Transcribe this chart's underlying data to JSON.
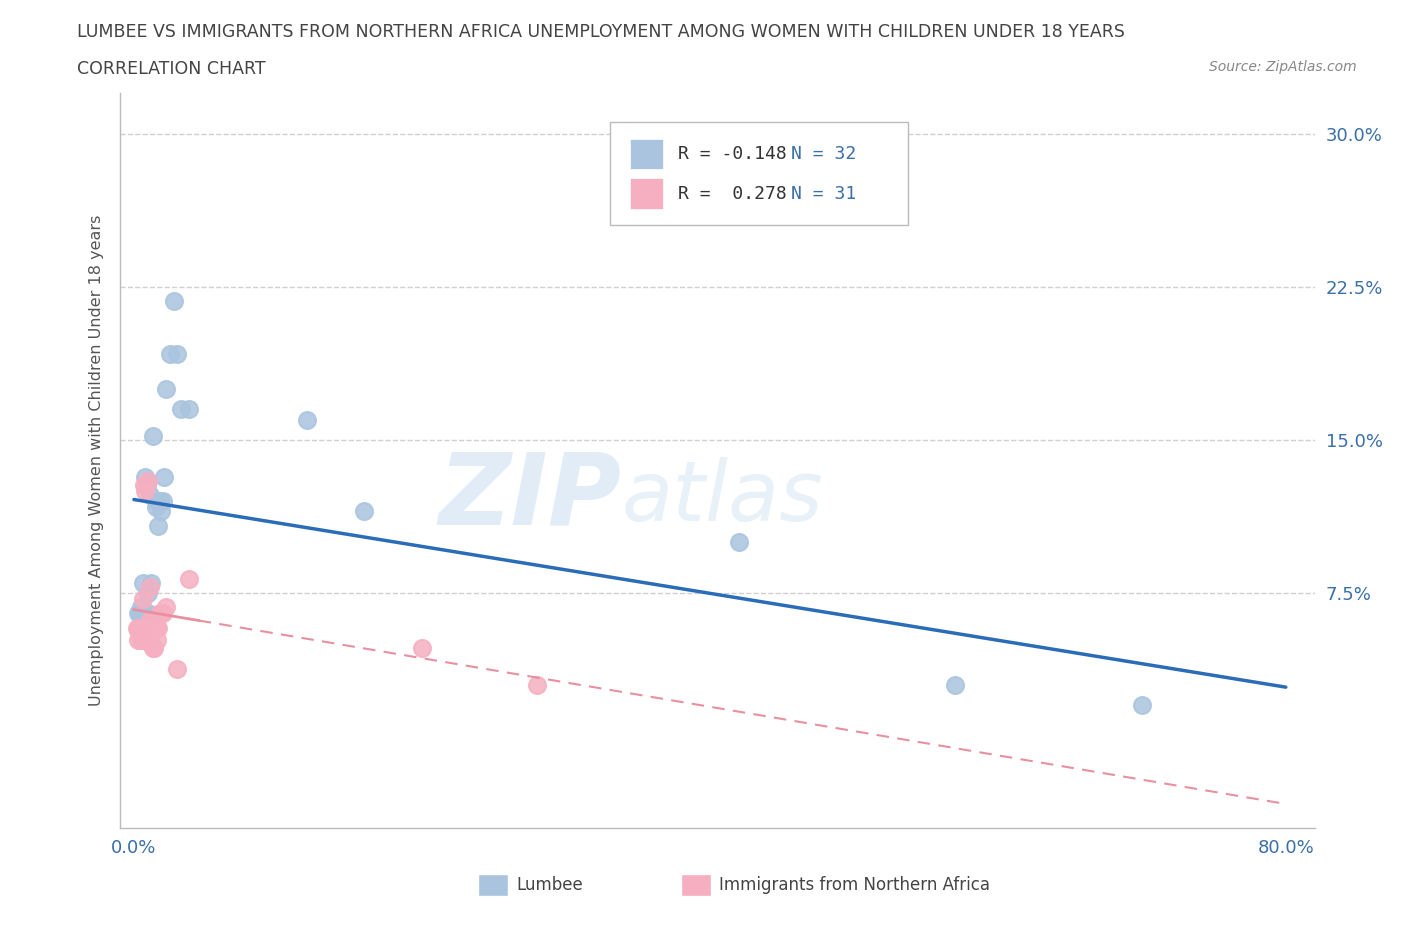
{
  "title_line1": "LUMBEE VS IMMIGRANTS FROM NORTHERN AFRICA UNEMPLOYMENT AMONG WOMEN WITH CHILDREN UNDER 18 YEARS",
  "title_line2": "CORRELATION CHART",
  "source": "Source: ZipAtlas.com",
  "ylabel": "Unemployment Among Women with Children Under 18 years",
  "xlim": [
    -0.01,
    0.82
  ],
  "ylim": [
    -0.04,
    0.32
  ],
  "xticks": [
    0.0,
    0.2,
    0.4,
    0.6,
    0.8
  ],
  "xticklabels": [
    "0.0%",
    "",
    "",
    "",
    "80.0%"
  ],
  "ytick_labels_right": [
    "7.5%",
    "15.0%",
    "22.5%",
    "30.0%"
  ],
  "ytick_vals_right": [
    0.075,
    0.15,
    0.225,
    0.3
  ],
  "watermark_zip": "ZIP",
  "watermark_atlas": "atlas",
  "legend_r1": "R = -0.148",
  "legend_n1": "N = 32",
  "legend_r2": "R =  0.278",
  "legend_n2": "N = 31",
  "lumbee_color": "#aac4df",
  "immigrants_color": "#f5afc0",
  "lumbee_line_color": "#2b6cb8",
  "immigrants_line_color": "#e8909f",
  "lumbee_x": [
    0.003,
    0.004,
    0.005,
    0.006,
    0.006,
    0.007,
    0.008,
    0.008,
    0.009,
    0.01,
    0.01,
    0.011,
    0.012,
    0.013,
    0.015,
    0.016,
    0.017,
    0.018,
    0.019,
    0.02,
    0.021,
    0.022,
    0.025,
    0.028,
    0.03,
    0.033,
    0.038,
    0.12,
    0.16,
    0.42,
    0.57,
    0.7
  ],
  "lumbee_y": [
    0.065,
    0.065,
    0.068,
    0.065,
    0.08,
    0.065,
    0.065,
    0.132,
    0.128,
    0.065,
    0.075,
    0.123,
    0.08,
    0.152,
    0.117,
    0.12,
    0.108,
    0.12,
    0.115,
    0.12,
    0.132,
    0.175,
    0.192,
    0.218,
    0.192,
    0.165,
    0.165,
    0.16,
    0.115,
    0.1,
    0.03,
    0.02
  ],
  "immigrants_x": [
    0.002,
    0.003,
    0.003,
    0.004,
    0.004,
    0.005,
    0.005,
    0.006,
    0.006,
    0.007,
    0.007,
    0.008,
    0.009,
    0.01,
    0.01,
    0.011,
    0.011,
    0.012,
    0.012,
    0.013,
    0.014,
    0.015,
    0.016,
    0.017,
    0.018,
    0.02,
    0.022,
    0.03,
    0.038,
    0.2,
    0.28
  ],
  "immigrants_y": [
    0.058,
    0.052,
    0.057,
    0.055,
    0.058,
    0.052,
    0.058,
    0.072,
    0.052,
    0.058,
    0.128,
    0.125,
    0.052,
    0.057,
    0.13,
    0.078,
    0.062,
    0.062,
    0.05,
    0.048,
    0.048,
    0.058,
    0.052,
    0.058,
    0.065,
    0.065,
    0.068,
    0.038,
    0.082,
    0.048,
    0.03
  ],
  "background_color": "#ffffff",
  "grid_color": "#d0d0d0",
  "bottom_legend_lumbee": "Lumbee",
  "bottom_legend_immigrants": "Immigrants from Northern Africa"
}
